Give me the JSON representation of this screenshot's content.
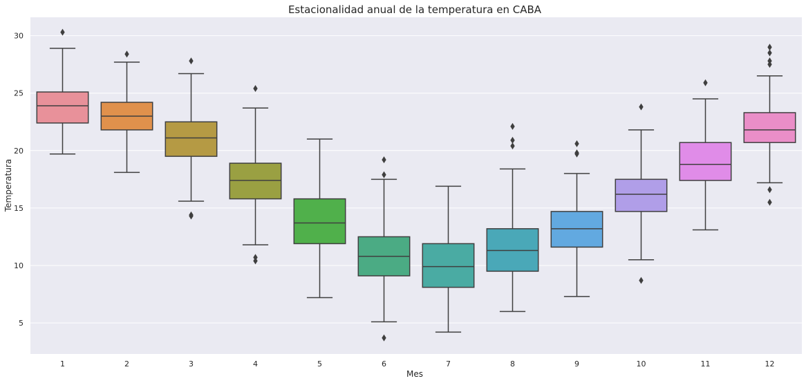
{
  "chart_data": {
    "type": "box",
    "title": "Estacionalidad anual de la temperatura en CABA",
    "xlabel": "Mes",
    "ylabel": "Temperatura",
    "ylim": [
      2.3,
      31.6
    ],
    "yticks": [
      5,
      10,
      15,
      20,
      25,
      30
    ],
    "grid": true,
    "categories": [
      "1",
      "2",
      "3",
      "4",
      "5",
      "6",
      "7",
      "8",
      "9",
      "10",
      "11",
      "12"
    ],
    "colors": [
      "#e8919a",
      "#e0914c",
      "#b59a44",
      "#9aa042",
      "#50b04b",
      "#4bab84",
      "#4aaba3",
      "#4aa8b8",
      "#62a9e0",
      "#b09ee8",
      "#e08ce8",
      "#ea8ec8"
    ],
    "boxes": [
      {
        "whisker_low": 19.7,
        "q1": 22.4,
        "median": 23.9,
        "q3": 25.1,
        "whisker_high": 28.9,
        "outliers": [
          30.3
        ]
      },
      {
        "whisker_low": 18.1,
        "q1": 21.8,
        "median": 23.0,
        "q3": 24.2,
        "whisker_high": 27.7,
        "outliers": [
          28.4
        ]
      },
      {
        "whisker_low": 15.6,
        "q1": 19.5,
        "median": 21.1,
        "q3": 22.5,
        "whisker_high": 26.7,
        "outliers": [
          27.8,
          14.4,
          14.3
        ]
      },
      {
        "whisker_low": 11.8,
        "q1": 15.8,
        "median": 17.4,
        "q3": 18.9,
        "whisker_high": 23.7,
        "outliers": [
          25.4,
          10.7,
          10.4
        ]
      },
      {
        "whisker_low": 7.2,
        "q1": 11.9,
        "median": 13.7,
        "q3": 15.8,
        "whisker_high": 21.0,
        "outliers": []
      },
      {
        "whisker_low": 5.1,
        "q1": 9.1,
        "median": 10.8,
        "q3": 12.5,
        "whisker_high": 17.5,
        "outliers": [
          19.2,
          17.9,
          3.7
        ]
      },
      {
        "whisker_low": 4.2,
        "q1": 8.1,
        "median": 9.9,
        "q3": 11.9,
        "whisker_high": 16.9,
        "outliers": []
      },
      {
        "whisker_low": 6.0,
        "q1": 9.5,
        "median": 11.3,
        "q3": 13.2,
        "whisker_high": 18.4,
        "outliers": [
          22.1,
          20.9,
          20.4
        ]
      },
      {
        "whisker_low": 7.3,
        "q1": 11.6,
        "median": 13.2,
        "q3": 14.7,
        "whisker_high": 18.0,
        "outliers": [
          20.6,
          19.8,
          19.7
        ]
      },
      {
        "whisker_low": 10.5,
        "q1": 14.7,
        "median": 16.2,
        "q3": 17.5,
        "whisker_high": 21.8,
        "outliers": [
          23.8,
          8.7
        ]
      },
      {
        "whisker_low": 13.1,
        "q1": 17.4,
        "median": 18.8,
        "q3": 20.7,
        "whisker_high": 24.5,
        "outliers": [
          25.9
        ]
      },
      {
        "whisker_low": 17.2,
        "q1": 20.7,
        "median": 21.8,
        "q3": 23.3,
        "whisker_high": 26.5,
        "outliers": [
          29.0,
          28.5,
          27.8,
          27.5,
          16.6,
          15.5
        ]
      }
    ]
  }
}
